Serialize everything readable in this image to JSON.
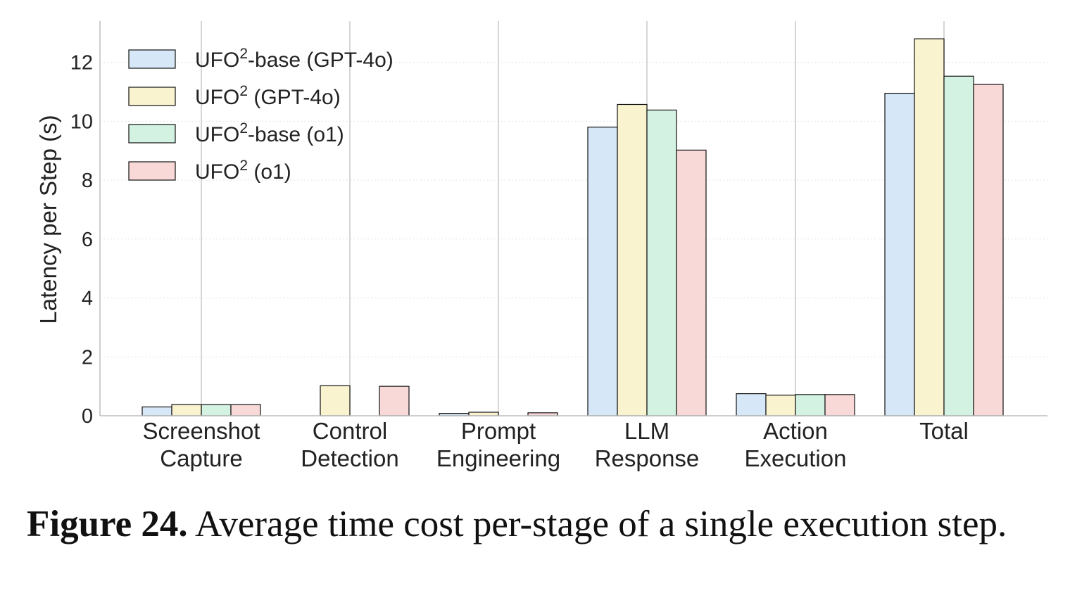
{
  "caption": {
    "label": "Figure 24.",
    "text": "Average time cost per-stage of a single execution step."
  },
  "chart_data": {
    "type": "bar",
    "title": "",
    "xlabel": "",
    "ylabel": "Latency per Step (s)",
    "ylim": [
      0,
      13.4
    ],
    "yticks": [
      0,
      2,
      4,
      6,
      8,
      10,
      12
    ],
    "grid": "vertical lines at categories, faint horizontal dashes",
    "legend_position": "top-left",
    "categories": [
      [
        "Screenshot",
        "Capture"
      ],
      [
        "Control",
        "Detection"
      ],
      [
        "Prompt",
        "Engineering"
      ],
      [
        "LLM",
        "Response"
      ],
      [
        "Action",
        "Execution"
      ],
      [
        "Total"
      ]
    ],
    "series": [
      {
        "name": "UFO²-base (GPT-4o)",
        "name_main": "UFO",
        "name_sup": "2",
        "name_rest": "-base (GPT-4o)",
        "color": "#d6e8f7",
        "values": [
          0.3,
          0.0,
          0.08,
          9.8,
          0.75,
          10.95
        ]
      },
      {
        "name": "UFO² (GPT-4o)",
        "name_main": "UFO",
        "name_sup": "2",
        "name_rest": " (GPT-4o)",
        "color": "#faf3cf",
        "values": [
          0.38,
          1.02,
          0.12,
          10.57,
          0.7,
          12.8
        ]
      },
      {
        "name": "UFO²-base (o1)",
        "name_main": "UFO",
        "name_sup": "2",
        "name_rest": "-base (o1)",
        "color": "#d4f2e2",
        "values": [
          0.38,
          0.0,
          0.0,
          10.38,
          0.72,
          11.53
        ]
      },
      {
        "name": "UFO² (o1)",
        "name_main": "UFO",
        "name_sup": "2",
        "name_rest": " (o1)",
        "color": "#f9d9d8",
        "values": [
          0.38,
          1.0,
          0.1,
          9.02,
          0.72,
          11.25
        ]
      }
    ]
  }
}
